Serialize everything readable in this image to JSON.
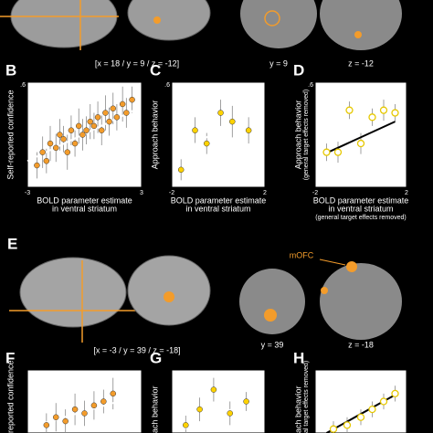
{
  "labels": {
    "panel_a_coords": "[x = 18 / y = 9 / z = -12]",
    "panel_a_y": "y = 9",
    "panel_a_z": "z = -12",
    "panel_e": "E",
    "panel_e_coords": "[x = -3 / y = 39 / z = -18]",
    "panel_e_y": "y = 39",
    "panel_e_z": "z = -18",
    "mofc": "mOFC"
  },
  "chart_data": [
    {
      "type": "scatter",
      "panel": "B",
      "marker": "filled",
      "color": "#f39c2b",
      "ylabel": [
        "Self-reported confidence"
      ],
      "xlabel": [
        "BOLD parameter estimate",
        "in ventral striatum"
      ],
      "xlim": [
        -3,
        3
      ],
      "ylim": [
        -0.6,
        0.6
      ],
      "xticks": [
        -3,
        3
      ],
      "yticks": [
        {
          "value": 0.6,
          "label": ".6"
        }
      ],
      "x": [
        -2.5,
        -2.2,
        -2,
        -1.8,
        -1.5,
        -1.3,
        -1.1,
        -0.9,
        -0.7,
        -0.5,
        -0.3,
        -0.1,
        0.1,
        0.3,
        0.5,
        0.7,
        0.9,
        1.1,
        1.3,
        1.5,
        1.7,
        2,
        2.2,
        2.5
      ],
      "values": [
        -0.35,
        -0.2,
        -0.3,
        -0.1,
        -0.15,
        0,
        -0.05,
        -0.2,
        0.05,
        -0.1,
        0.1,
        0,
        0.05,
        0.15,
        0.1,
        0.2,
        0.05,
        0.25,
        0.15,
        0.3,
        0.2,
        0.35,
        0.25,
        0.4
      ],
      "errors": [
        0.15,
        0.18,
        0.14,
        0.2,
        0.16,
        0.18,
        0.15,
        0.2,
        0.17,
        0.15,
        0.2,
        0.18,
        0.16,
        0.2,
        0.15,
        0.18,
        0.17,
        0.2,
        0.16,
        0.18,
        0.15,
        0.2,
        0.17,
        0.15
      ],
      "trend": {
        "x": [
          -3,
          2.8
        ],
        "values": [
          -0.3,
          0.3
        ]
      }
    },
    {
      "type": "scatter",
      "panel": "C",
      "marker": "filled",
      "color": "#ffd200",
      "ylabel": [
        "Approach behavior"
      ],
      "xlabel": [
        "BOLD parameter estimate",
        "in ventral striatum"
      ],
      "xlim": [
        -2,
        2
      ],
      "ylim": [
        -0.6,
        0.6
      ],
      "xticks": [
        -2,
        2
      ],
      "yticks": [
        {
          "value": 0.6,
          "label": ".6"
        }
      ],
      "x": [
        -1.6,
        -1,
        -0.5,
        0.1,
        0.6,
        1.3
      ],
      "values": [
        -0.4,
        0.05,
        -0.1,
        0.25,
        0.15,
        0.05
      ],
      "errors": [
        0.12,
        0.15,
        0.12,
        0.15,
        0.18,
        0.15
      ],
      "trend": {
        "x": [
          -1.6,
          1.4
        ],
        "values": [
          -0.2,
          0.27
        ]
      }
    },
    {
      "type": "scatter",
      "panel": "D",
      "marker": "hollow",
      "color": "#e6c800",
      "ylabel": [
        "Approach behavior",
        "(general target effects removed)"
      ],
      "xlabel": [
        "BOLD parameter estimate",
        "in ventral striatum",
        "(general target effects removed)"
      ],
      "xlim": [
        -2,
        2
      ],
      "ylim": [
        -0.6,
        0.6
      ],
      "xticks": [
        -2,
        2
      ],
      "yticks": [
        {
          "value": 0.6,
          "label": ".6"
        }
      ],
      "x": [
        -1.5,
        -1,
        -0.5,
        0,
        0.5,
        1,
        1.5
      ],
      "values": [
        -0.2,
        -0.2,
        0.28,
        -0.1,
        0.2,
        0.28,
        0.25
      ],
      "errors": [
        0.1,
        0.12,
        0.1,
        0.12,
        0.1,
        0.12,
        0.1
      ],
      "trend": {
        "x": [
          -1.6,
          1.5
        ],
        "values": [
          -0.22,
          0.15
        ]
      }
    },
    {
      "type": "scatter",
      "panel": "F",
      "marker": "filled",
      "color": "#f39c2b",
      "ylabel": [
        "reported confidence"
      ],
      "xlim": [
        -3,
        3
      ],
      "ylim": [
        -0.2,
        0.6
      ],
      "x": [
        -2,
        -1.5,
        -1,
        -0.5,
        0,
        0.5,
        1,
        1.5
      ],
      "values": [
        -0.1,
        0,
        -0.05,
        0.1,
        0.05,
        0.15,
        0.2,
        0.3
      ],
      "errors": [
        0.15,
        0.18,
        0.15,
        0.2,
        0.16,
        0.18,
        0.15,
        0.2
      ],
      "trend": {
        "x": [
          -2.5,
          2.5
        ],
        "values": [
          -0.1,
          0.25
        ]
      }
    },
    {
      "type": "scatter",
      "panel": "G",
      "marker": "filled",
      "color": "#ffd200",
      "ylabel": [
        "ach behavior"
      ],
      "xlim": [
        -2,
        2
      ],
      "ylim": [
        -0.2,
        0.6
      ],
      "x": [
        -1.4,
        -0.8,
        -0.2,
        0.5,
        1.2
      ],
      "values": [
        -0.1,
        0.1,
        0.35,
        0.05,
        0.2
      ],
      "errors": [
        0.12,
        0.15,
        0.15,
        0.15,
        0.12
      ],
      "trend": {
        "x": [
          -1.5,
          1.4
        ],
        "values": [
          -0.15,
          0.2
        ]
      }
    },
    {
      "type": "scatter",
      "panel": "H",
      "marker": "hollow",
      "color": "#e6c800",
      "ylabel": [
        "ach behavior",
        "al target effects removed)"
      ],
      "xlim": [
        -2,
        2
      ],
      "ylim": [
        -0.2,
        0.6
      ],
      "x": [
        -1.2,
        -0.6,
        0,
        0.5,
        1,
        1.5
      ],
      "values": [
        -0.15,
        -0.1,
        0,
        0.1,
        0.2,
        0.3
      ],
      "errors": [
        0.1,
        0.1,
        0.1,
        0.1,
        0.1,
        0.1
      ],
      "trend": {
        "x": [
          -1.5,
          1.6
        ],
        "values": [
          -0.2,
          0.3
        ]
      }
    }
  ]
}
